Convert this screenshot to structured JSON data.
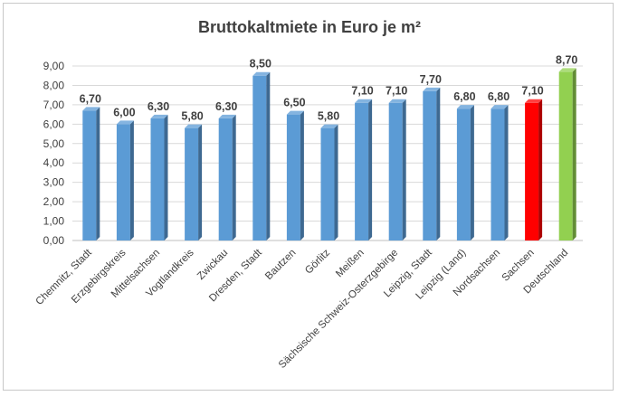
{
  "chart_data": {
    "type": "bar",
    "title": "Bruttokaltmiete in Euro je m²",
    "xlabel": "",
    "ylabel": "",
    "ylim": [
      0,
      9
    ],
    "yticks": [
      "0,00",
      "1,00",
      "2,00",
      "3,00",
      "4,00",
      "5,00",
      "6,00",
      "7,00",
      "8,00",
      "9,00"
    ],
    "categories": [
      "Chemnitz, Stadt",
      "Erzgebirgskreis",
      "Mittelsachsen",
      "Vogtlandkreis",
      "Zwickau",
      "Dresden, Stadt",
      "Bautzen",
      "Görlitz",
      "Meißen",
      "Sächsische Schweiz-Osterzgebirge",
      "Leipzig, Stadt",
      "Leipzig (Land)",
      "Nordsachsen",
      "Sachsen",
      "Deutschland"
    ],
    "values": [
      6.7,
      6.0,
      6.3,
      5.8,
      6.3,
      8.5,
      6.5,
      5.8,
      7.1,
      7.1,
      7.7,
      6.8,
      6.8,
      7.1,
      8.7
    ],
    "data_labels": [
      "6,70",
      "6,00",
      "6,30",
      "5,80",
      "6,30",
      "8,50",
      "6,50",
      "5,80",
      "7,10",
      "7,10",
      "7,70",
      "6,80",
      "6,80",
      "7,10",
      "8,70"
    ],
    "colors": [
      "#5b9bd5",
      "#5b9bd5",
      "#5b9bd5",
      "#5b9bd5",
      "#5b9bd5",
      "#5b9bd5",
      "#5b9bd5",
      "#5b9bd5",
      "#5b9bd5",
      "#5b9bd5",
      "#5b9bd5",
      "#5b9bd5",
      "#5b9bd5",
      "#ff0000",
      "#92d050"
    ],
    "grid": true,
    "legend": "none"
  }
}
